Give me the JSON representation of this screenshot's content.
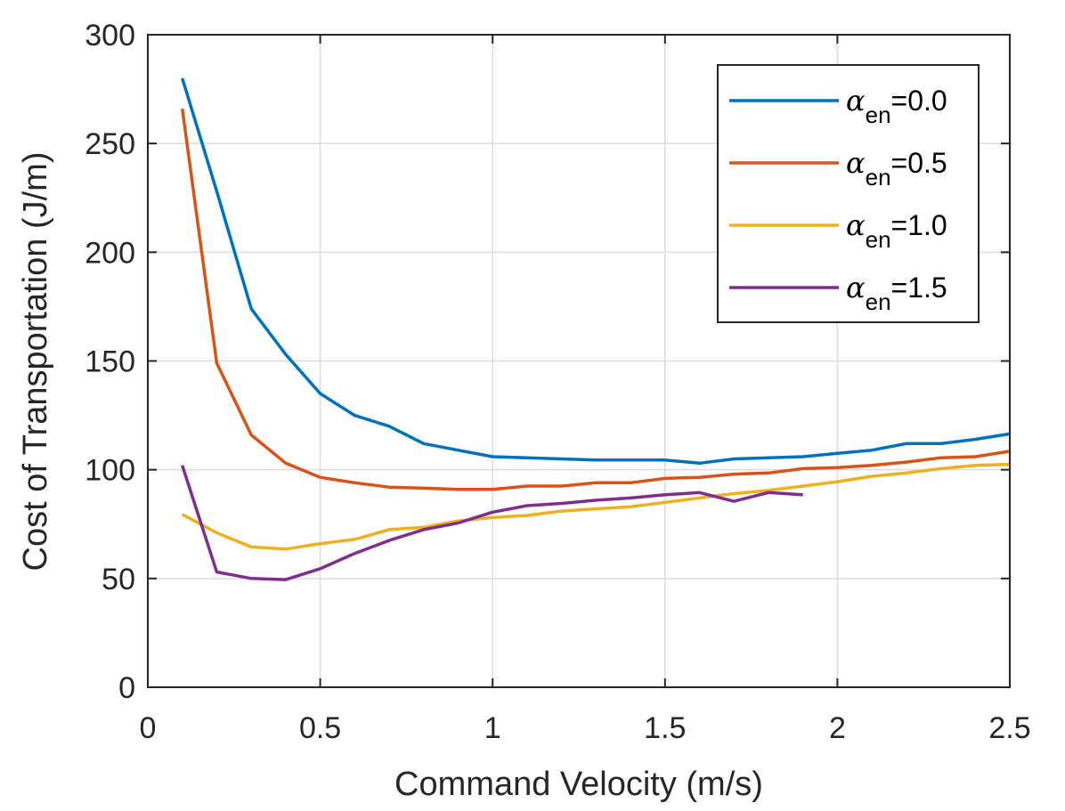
{
  "chart_data": {
    "type": "line",
    "title": "",
    "xlabel": "Command Velocity (m/s)",
    "ylabel": "Cost of Transportation (J/m)",
    "xlim": [
      0,
      2.5
    ],
    "ylim": [
      0,
      300
    ],
    "xticks": [
      0,
      0.5,
      1,
      1.5,
      2,
      2.5
    ],
    "xtick_labels": [
      "0",
      "0.5",
      "1",
      "1.5",
      "2",
      "2.5"
    ],
    "yticks": [
      0,
      50,
      100,
      150,
      200,
      250,
      300
    ],
    "ytick_labels": [
      "0",
      "50",
      "100",
      "150",
      "200",
      "250",
      "300"
    ],
    "grid": true,
    "legend_position": "top-right",
    "legend_symbol": "α",
    "legend_subscript": "en",
    "series": [
      {
        "name": "α_en=0.0",
        "value_label": "=0.0",
        "color": "#0072BD",
        "x": [
          0.1,
          0.2,
          0.3,
          0.4,
          0.5,
          0.6,
          0.7,
          0.8,
          0.9,
          1.0,
          1.1,
          1.2,
          1.3,
          1.4,
          1.5,
          1.6,
          1.7,
          1.8,
          1.9,
          2.0,
          2.1,
          2.2,
          2.3,
          2.4,
          2.5
        ],
        "y": [
          280,
          228,
          174,
          153,
          135,
          125,
          120,
          112,
          109,
          106,
          105.5,
          105,
          104.5,
          104.5,
          104.5,
          103,
          105,
          105.5,
          106,
          107.5,
          109,
          112,
          112,
          114,
          116.5
        ]
      },
      {
        "name": "α_en=0.5",
        "value_label": "=0.5",
        "color": "#D95319",
        "x": [
          0.1,
          0.2,
          0.3,
          0.4,
          0.5,
          0.6,
          0.7,
          0.8,
          0.9,
          1.0,
          1.1,
          1.2,
          1.3,
          1.4,
          1.5,
          1.6,
          1.7,
          1.8,
          1.9,
          2.0,
          2.1,
          2.2,
          2.3,
          2.4,
          2.5
        ],
        "y": [
          266,
          149,
          116,
          103,
          96.5,
          94,
          92,
          91.5,
          91,
          91,
          92.5,
          92.5,
          94,
          94,
          96,
          96.5,
          98,
          98.5,
          100.5,
          101,
          102,
          103.5,
          105.5,
          106,
          108.5
        ]
      },
      {
        "name": "α_en=1.0",
        "value_label": "=1.0",
        "color": "#EDB120",
        "x": [
          0.1,
          0.2,
          0.3,
          0.4,
          0.5,
          0.6,
          0.7,
          0.8,
          0.9,
          1.0,
          1.1,
          1.2,
          1.3,
          1.4,
          1.5,
          1.6,
          1.7,
          1.8,
          1.9,
          2.0,
          2.1,
          2.2,
          2.3,
          2.4,
          2.5
        ],
        "y": [
          79.5,
          71,
          64.5,
          63.5,
          66,
          68,
          72.5,
          73.5,
          76.5,
          78,
          79,
          81,
          82,
          83,
          85,
          87,
          89,
          90.5,
          92.5,
          94.5,
          97,
          98.5,
          100.5,
          102,
          102.5
        ]
      },
      {
        "name": "α_en=1.5",
        "value_label": "=1.5",
        "color": "#7E2F8E",
        "x": [
          0.1,
          0.2,
          0.3,
          0.4,
          0.5,
          0.6,
          0.7,
          0.8,
          0.9,
          1.0,
          1.1,
          1.2,
          1.3,
          1.4,
          1.5,
          1.6,
          1.7,
          1.8,
          1.9
        ],
        "y": [
          102,
          53,
          50,
          49.5,
          54.5,
          61.5,
          67.5,
          72.5,
          75.5,
          80.5,
          83.5,
          84.5,
          86,
          87,
          88.5,
          89.5,
          85.5,
          89.5,
          88.5
        ]
      }
    ]
  }
}
